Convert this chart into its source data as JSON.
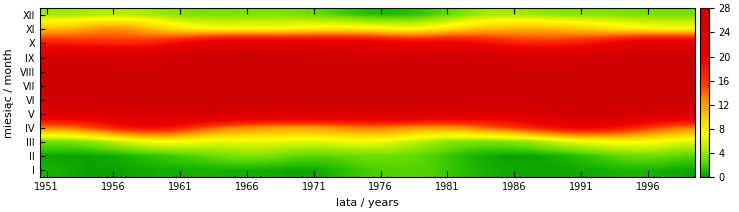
{
  "title": "",
  "xlabel": "lata / years",
  "ylabel": "miesiąc / month",
  "year_start": 1951,
  "year_end": 1999,
  "vmin": 0,
  "vmax": 28,
  "xticks": [
    1951,
    1956,
    1961,
    1966,
    1971,
    1976,
    1981,
    1986,
    1991,
    1996
  ],
  "yticks_labels": [
    "I",
    "II",
    "III",
    "IV",
    "V",
    "VI",
    "VII",
    "VIII",
    "IX",
    "X",
    "XI",
    "XII"
  ],
  "colorbar_ticks": [
    0,
    4,
    8,
    12,
    16,
    20,
    24,
    28
  ],
  "figsize": [
    7.39,
    2.12
  ],
  "dpi": 100,
  "base_days": [
    1.0,
    1.5,
    5.0,
    14.0,
    28.0,
    28.0,
    28.0,
    28.0,
    28.0,
    22.0,
    8.0,
    2.0
  ],
  "noise_scale": [
    1.0,
    1.5,
    2.5,
    3.0,
    2.0,
    0.5,
    0.5,
    0.5,
    1.0,
    3.0,
    2.5,
    1.5
  ]
}
